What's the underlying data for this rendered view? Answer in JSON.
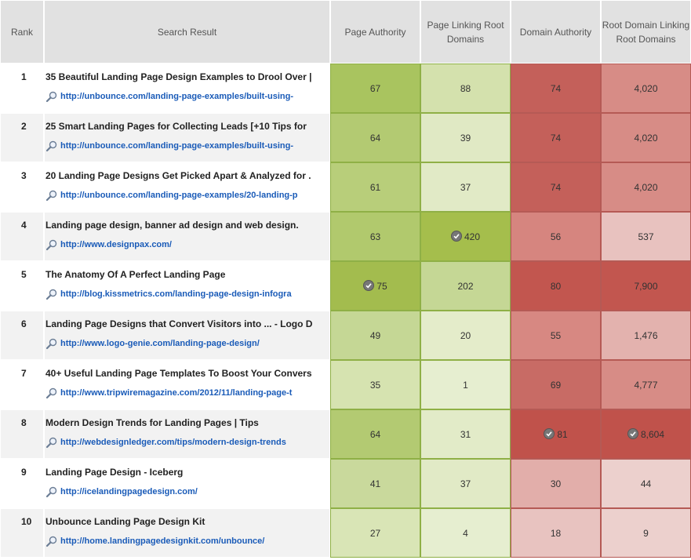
{
  "headers": {
    "rank": "Rank",
    "search_result": "Search Result",
    "page_authority": "Page Authority",
    "page_linking_root_domains": "Page Linking Root Domains",
    "domain_authority": "Domain Authority",
    "root_domain_linking_root_domains": "Root Domain Linking Root Domains"
  },
  "rows": [
    {
      "rank": "1",
      "title": "35 Beautiful Landing Page Design Examples to Drool Over |",
      "url": "http://unbounce.com/landing-page-examples/built-using-",
      "pa": "67",
      "plrd": "88",
      "da": "74",
      "rdlrd": "4,020"
    },
    {
      "rank": "2",
      "title": "25 Smart Landing Pages for Collecting Leads [+10 Tips for",
      "url": "http://unbounce.com/landing-page-examples/built-using-",
      "pa": "64",
      "plrd": "39",
      "da": "74",
      "rdlrd": "4,020"
    },
    {
      "rank": "3",
      "title": "20 Landing Page Designs Get Picked Apart & Analyzed for .",
      "url": "http://unbounce.com/landing-page-examples/20-landing-p",
      "pa": "61",
      "plrd": "37",
      "da": "74",
      "rdlrd": "4,020"
    },
    {
      "rank": "4",
      "title": "Landing page design, banner ad design and web design.",
      "url": "http://www.designpax.com/",
      "pa": "63",
      "plrd": "420",
      "da": "56",
      "rdlrd": "537"
    },
    {
      "rank": "5",
      "title": "The Anatomy Of A Perfect Landing Page",
      "url": "http://blog.kissmetrics.com/landing-page-design-infogra",
      "pa": "75",
      "plrd": "202",
      "da": "80",
      "rdlrd": "7,900"
    },
    {
      "rank": "6",
      "title": "Landing Page Designs that Convert Visitors into ... - Logo D",
      "url": "http://www.logo-genie.com/landing-page-design/",
      "pa": "49",
      "plrd": "20",
      "da": "55",
      "rdlrd": "1,476"
    },
    {
      "rank": "7",
      "title": "40+ Useful Landing Page Templates To Boost Your Convers",
      "url": "http://www.tripwiremagazine.com/2012/11/landing-page-t",
      "pa": "35",
      "plrd": "1",
      "da": "69",
      "rdlrd": "4,777"
    },
    {
      "rank": "8",
      "title": "Modern Design Trends for Landing Pages | Tips",
      "url": "http://webdesignledger.com/tips/modern-design-trends",
      "pa": "64",
      "plrd": "31",
      "da": "81",
      "rdlrd": "8,604"
    },
    {
      "rank": "9",
      "title": "Landing Page Design - Iceberg",
      "url": "http://icelandingpagedesign.com/",
      "pa": "41",
      "plrd": "37",
      "da": "30",
      "rdlrd": "44"
    },
    {
      "rank": "10",
      "title": "Unbounce Landing Page Design Kit",
      "url": "http://home.landingpagedesignkit.com/unbounce/",
      "pa": "27",
      "plrd": "4",
      "da": "18",
      "rdlrd": "9"
    }
  ],
  "cell_colors": {
    "pa": [
      "#a9c45f",
      "#b3ca72",
      "#b8ce7a",
      "#b1c96d",
      "#a3bc4e",
      "#c5d795",
      "#d6e3b0",
      "#b3ca72",
      "#c9d99c",
      "#d9e5b6"
    ],
    "plrd": [
      "#d4e1ad",
      "#e0e9c4",
      "#e1eac6",
      "#a5be4c",
      "#c5d795",
      "#e4ecca",
      "#e6eed0",
      "#e2ebc8",
      "#e1eac6",
      "#e6eed0"
    ],
    "da": [
      "#c4605a",
      "#c4605a",
      "#c4605a",
      "#d6857f",
      "#c2564f",
      "#d78882",
      "#c86b65",
      "#c0524b",
      "#e2aeaa",
      "#e8c3c0"
    ],
    "rdlrd": [
      "#d78c86",
      "#d78c86",
      "#d78c86",
      "#e8c2bf",
      "#c2564f",
      "#e3b2ae",
      "#d78c86",
      "#c0524b",
      "#ecd0cd",
      "#ecd0cd"
    ]
  },
  "checkmarks": {
    "pa": [
      false,
      false,
      false,
      false,
      true,
      false,
      false,
      false,
      false,
      false
    ],
    "plrd": [
      false,
      false,
      false,
      true,
      false,
      false,
      false,
      false,
      false,
      false
    ],
    "da": [
      false,
      false,
      false,
      false,
      false,
      false,
      false,
      true,
      false,
      false
    ],
    "rdlrd": [
      false,
      false,
      false,
      false,
      false,
      false,
      false,
      true,
      false,
      false
    ]
  },
  "icons": {
    "url_prefix": "magnifier-icon",
    "top_value": "checkmark-icon"
  }
}
